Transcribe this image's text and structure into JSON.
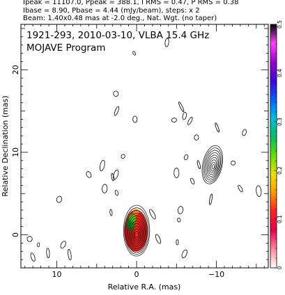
{
  "header": {
    "line1": "Ipeak = 11107.0, Ppeak = 388.1, I RMS = 0.47, P RMS = 0.38",
    "line2": "Ibase = 8.90, Pbase = 4.44 (mJy/beam), steps: x 2",
    "line3": "Beam: 1.40x0.48 mas at -2.0 deg., Nat. Wgt. (no taper)"
  },
  "chart_data": {
    "type": "heatmap",
    "title": "1921-293, 2010-03-10, VLBA 15.4 GHz",
    "subtitle": "MOJAVE Program",
    "xlabel": "Relative R.A. (mas)",
    "ylabel": "Relative Declination (mas)",
    "xlim": [
      14.5,
      -16.5
    ],
    "ylim": [
      -4.0,
      25.5
    ],
    "x_ticks": [
      10,
      0,
      -10
    ],
    "y_ticks": [
      0,
      10,
      20
    ],
    "colorbar": {
      "label_ticks": [
        0,
        0.1,
        0.2,
        0.3,
        0.4,
        0.5
      ],
      "range": [
        0,
        0.5
      ],
      "colors": [
        "#ffffff",
        "#ff8aa0",
        "#e8004a",
        "#ff2020",
        "#ff9900",
        "#f0e000",
        "#60e000",
        "#00c060",
        "#00c0e0",
        "#0060ff",
        "#4000e0",
        "#a000d0",
        "#ff40ff",
        "#000000"
      ]
    },
    "core": {
      "x": 0.0,
      "y": 0.0,
      "n_contours": 11
    },
    "jet_feature": {
      "x": -9.5,
      "y": 8.5,
      "n_contours": 9
    },
    "polarized_region_colors": [
      "#ff2020",
      "#e04000",
      "#00a040",
      "#40d000",
      "#ff8800"
    ],
    "noise_contours": [
      {
        "x": 0.3,
        "y": 22.0
      },
      {
        "x": -3.8,
        "y": 23.3
      },
      {
        "x": 2.6,
        "y": 17.1
      },
      {
        "x": 2.5,
        "y": 15.0
      },
      {
        "x": 0.2,
        "y": 14.0
      },
      {
        "x": -5.6,
        "y": 15.5
      },
      {
        "x": -6.0,
        "y": 14.4
      },
      {
        "x": -4.7,
        "y": 13.9
      },
      {
        "x": -6.7,
        "y": 13.8
      },
      {
        "x": -7.5,
        "y": 11.8
      },
      {
        "x": -10.1,
        "y": 13.0
      },
      {
        "x": -13.5,
        "y": 12.4
      },
      {
        "x": -15.3,
        "y": 5.3
      },
      {
        "x": -13.0,
        "y": 5.6
      },
      {
        "x": -12.1,
        "y": 8.7
      },
      {
        "x": -7.8,
        "y": 8.5
      },
      {
        "x": -6.2,
        "y": 9.4
      },
      {
        "x": -5.0,
        "y": 7.5
      },
      {
        "x": -7.0,
        "y": 6.5
      },
      {
        "x": 4.3,
        "y": 8.4
      },
      {
        "x": 3.0,
        "y": 7.0
      },
      {
        "x": 1.7,
        "y": 9.5
      },
      {
        "x": 4.0,
        "y": 5.6
      },
      {
        "x": 2.5,
        "y": 5.1
      },
      {
        "x": 2.6,
        "y": 7.3
      },
      {
        "x": 3.2,
        "y": 2.7
      },
      {
        "x": -2.0,
        "y": 2.5
      },
      {
        "x": -5.5,
        "y": 3.0
      },
      {
        "x": -5.3,
        "y": 1.8
      },
      {
        "x": -6.0,
        "y": -2.3
      },
      {
        "x": -5.1,
        "y": -0.9
      },
      {
        "x": -2.7,
        "y": -0.5
      },
      {
        "x": 9.7,
        "y": 4.3
      },
      {
        "x": 8.4,
        "y": -2.4
      },
      {
        "x": 9.2,
        "y": -1.2
      },
      {
        "x": 12.3,
        "y": -1.2
      },
      {
        "x": 13.0,
        "y": -2.7
      },
      {
        "x": 13.4,
        "y": -0.5
      },
      {
        "x": 11.1,
        "y": -2.2
      },
      {
        "x": 6.0,
        "y": 7.3
      },
      {
        "x": -9.3,
        "y": 4.3
      }
    ]
  }
}
